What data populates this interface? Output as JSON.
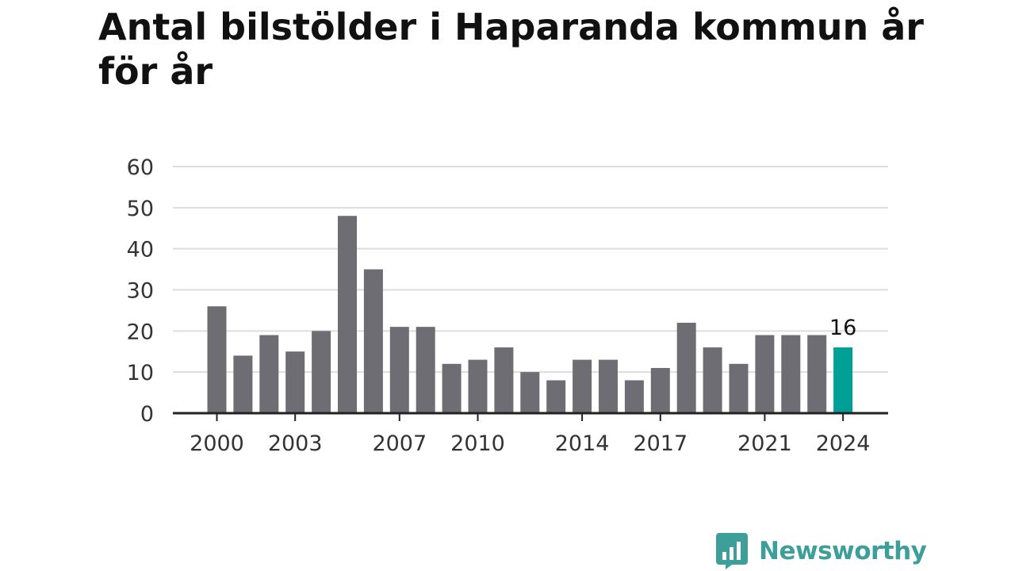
{
  "title": "Antal bilstölder i Haparanda kommun år för år",
  "brand": {
    "name": "Newsworthy",
    "color": "#3d9e9a",
    "icon": "newsworthy-chat-bars-icon"
  },
  "colors": {
    "bar": "#6d6d73",
    "highlight": "#00a096",
    "grid": "#dddddd",
    "axis": "#222222"
  },
  "chart_data": {
    "type": "bar",
    "title": "Antal bilstölder i Haparanda kommun år för år",
    "xlabel": "",
    "ylabel": "",
    "categories": [
      "2000",
      "2001",
      "2002",
      "2003",
      "2004",
      "2005",
      "2006",
      "2007",
      "2008",
      "2009",
      "2010",
      "2011",
      "2012",
      "2013",
      "2014",
      "2015",
      "2016",
      "2017",
      "2018",
      "2019",
      "2020",
      "2021",
      "2022",
      "2023",
      "2024"
    ],
    "values": [
      26,
      14,
      19,
      15,
      20,
      48,
      35,
      21,
      21,
      12,
      13,
      16,
      10,
      8,
      13,
      13,
      8,
      11,
      22,
      16,
      12,
      19,
      19,
      19,
      16
    ],
    "x_ticks": [
      "2000",
      "2003",
      "2007",
      "2010",
      "2014",
      "2017",
      "2021",
      "2024"
    ],
    "y_ticks": [
      0,
      10,
      20,
      30,
      40,
      50,
      60
    ],
    "ylim": [
      0,
      60
    ],
    "grid": true,
    "highlight": {
      "category": "2024",
      "label": "16"
    }
  }
}
